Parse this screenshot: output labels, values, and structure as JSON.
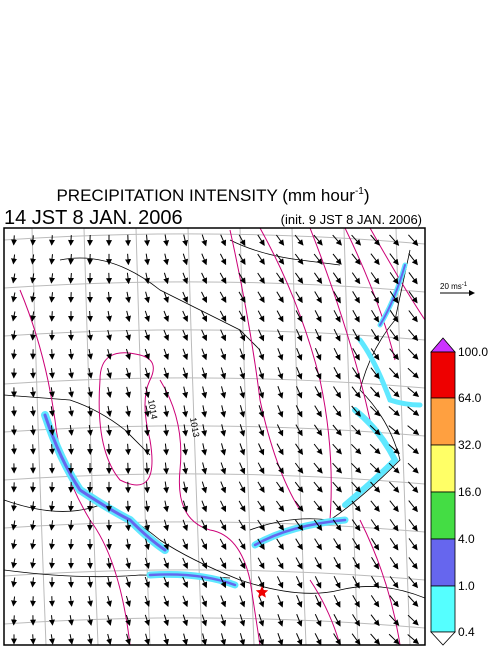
{
  "header": {
    "title": "PRECIPITATION INTENSITY (mm hour",
    "title_sup": "-1",
    "title_close": ")",
    "time": "14 JST 8 JAN. 2006",
    "init": "(init. 9 JST 8 JAN. 2006)"
  },
  "wind_scale": {
    "label": "20 ms",
    "label_sup": "-1"
  },
  "isobars": [
    "1014",
    "1013"
  ],
  "colorbar": {
    "labels": [
      "100.0",
      "64.0",
      "32.0",
      "16.0",
      "4.0",
      "1.0",
      "0.4"
    ]
  }
}
